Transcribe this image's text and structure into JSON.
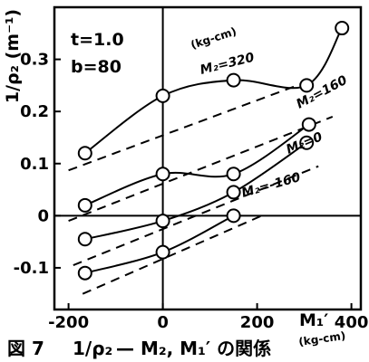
{
  "chart_data": {
    "type": "scatter",
    "params": {
      "t": "t=1.0",
      "b": "b=80"
    },
    "ylabel": "1/ρ₂ (m⁻¹)",
    "xlabel": "M₁′",
    "x_unit": "(kg-cm)",
    "xlim": [
      -230,
      420
    ],
    "ylim": [
      -0.18,
      0.4
    ],
    "x_ticks": [
      {
        "value": -200,
        "label": "-200"
      },
      {
        "value": 0,
        "label": "0"
      },
      {
        "value": 200,
        "label": "200"
      },
      {
        "value": 400,
        "label": "400"
      }
    ],
    "y_ticks": [
      {
        "value": 0.3,
        "label": "0.3"
      },
      {
        "value": 0.2,
        "label": "0.2"
      },
      {
        "value": 0.1,
        "label": "0.1"
      },
      {
        "value": 0,
        "label": "0"
      },
      {
        "value": -0.1,
        "label": "-0.1"
      }
    ],
    "series": [
      {
        "name": "M₂=320",
        "unit_note": "(kg-cm)",
        "points": [
          [
            -165,
            0.12
          ],
          [
            0,
            0.23
          ],
          [
            150,
            0.26
          ],
          [
            305,
            0.25
          ],
          [
            380,
            0.36
          ]
        ],
        "theory_line": [
          [
            -200,
            0.087
          ],
          [
            300,
            0.255
          ]
        ]
      },
      {
        "name": "M₂=160",
        "points": [
          [
            -165,
            0.02
          ],
          [
            0,
            0.08
          ],
          [
            150,
            0.08
          ],
          [
            310,
            0.175
          ]
        ],
        "theory_line": [
          [
            -200,
            -0.01
          ],
          [
            360,
            0.19
          ]
        ]
      },
      {
        "name": "M₂=0",
        "points": [
          [
            -165,
            -0.045
          ],
          [
            0,
            -0.01
          ],
          [
            150,
            0.045
          ],
          [
            305,
            0.14
          ]
        ],
        "theory_line": [
          [
            -190,
            -0.095
          ],
          [
            330,
            0.095
          ]
        ]
      },
      {
        "name": "M₂=-160",
        "points": [
          [
            -165,
            -0.11
          ],
          [
            0,
            -0.07
          ],
          [
            150,
            0.0
          ]
        ],
        "theory_line": [
          [
            -170,
            -0.15
          ],
          [
            210,
            0.0
          ]
        ]
      }
    ],
    "caption": {
      "prefix": "図 7",
      "y_sym": "1/ρ₂",
      "text": "— M₂, M₁′ の関係",
      "unit": "(kg-cm)"
    }
  }
}
